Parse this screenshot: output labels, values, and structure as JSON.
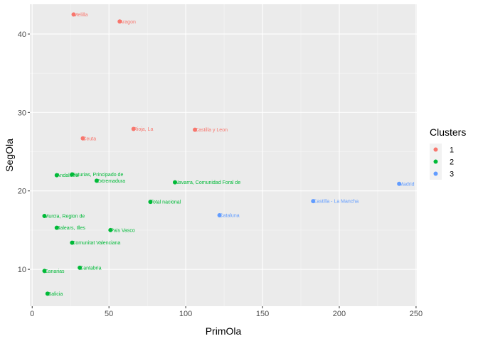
{
  "chart_data": {
    "type": "scatter",
    "title": "",
    "xlabel": "PrimOla",
    "ylabel": "SegOla",
    "xlim": [
      -1.5,
      250.5
    ],
    "ylim": [
      5.3,
      43.8
    ],
    "x_ticks": [
      0,
      50,
      100,
      150,
      200,
      250
    ],
    "y_ticks": [
      10,
      20,
      30,
      40
    ],
    "x_tick_labels": [
      "0",
      "50",
      "100",
      "150",
      "200",
      "250"
    ],
    "y_tick_labels": [
      "10",
      "20",
      "30",
      "40"
    ],
    "grid": true,
    "legend": {
      "title": "Clusters",
      "position": "right",
      "entries": [
        {
          "key": "1",
          "label": "1",
          "color": "#F8766D"
        },
        {
          "key": "2",
          "label": "2",
          "color": "#00BA38"
        },
        {
          "key": "3",
          "label": "3",
          "color": "#619CFF"
        }
      ]
    },
    "points": [
      {
        "label": "Melilla",
        "x": 27,
        "y": 42.5,
        "cluster": "1"
      },
      {
        "label": "Aragon",
        "x": 57,
        "y": 41.6,
        "cluster": "1"
      },
      {
        "label": "Rioja, La",
        "x": 66,
        "y": 27.9,
        "cluster": "1"
      },
      {
        "label": "Castilla y Leon",
        "x": 106,
        "y": 27.8,
        "cluster": "1"
      },
      {
        "label": "Ceuta",
        "x": 33,
        "y": 26.7,
        "cluster": "1"
      },
      {
        "label": "Andalucia",
        "x": 16,
        "y": 22.0,
        "cluster": "2"
      },
      {
        "label": "Asturias, Principado de",
        "x": 26,
        "y": 22.1,
        "cluster": "2"
      },
      {
        "label": "Extremadura",
        "x": 42,
        "y": 21.3,
        "cluster": "2"
      },
      {
        "label": "Navarra, Comunidad Foral de",
        "x": 93,
        "y": 21.1,
        "cluster": "2"
      },
      {
        "label": "Total nacional",
        "x": 77,
        "y": 18.6,
        "cluster": "2"
      },
      {
        "label": "Murcia, Region de",
        "x": 8,
        "y": 16.8,
        "cluster": "2"
      },
      {
        "label": "Balears, Illes",
        "x": 16,
        "y": 15.3,
        "cluster": "2"
      },
      {
        "label": "Pais Vasco",
        "x": 51,
        "y": 15.0,
        "cluster": "2"
      },
      {
        "label": "Comunitat Valenciana",
        "x": 26,
        "y": 13.4,
        "cluster": "2"
      },
      {
        "label": "Cantabria",
        "x": 31,
        "y": 10.2,
        "cluster": "2"
      },
      {
        "label": "Canarias",
        "x": 8,
        "y": 9.8,
        "cluster": "2"
      },
      {
        "label": "Galicia",
        "x": 10,
        "y": 6.9,
        "cluster": "2"
      },
      {
        "label": "Cataluna",
        "x": 122,
        "y": 16.9,
        "cluster": "3"
      },
      {
        "label": "Castilla - La Mancha",
        "x": 183,
        "y": 18.7,
        "cluster": "3"
      },
      {
        "label": "Madrid",
        "x": 239,
        "y": 20.9,
        "cluster": "3"
      }
    ]
  }
}
